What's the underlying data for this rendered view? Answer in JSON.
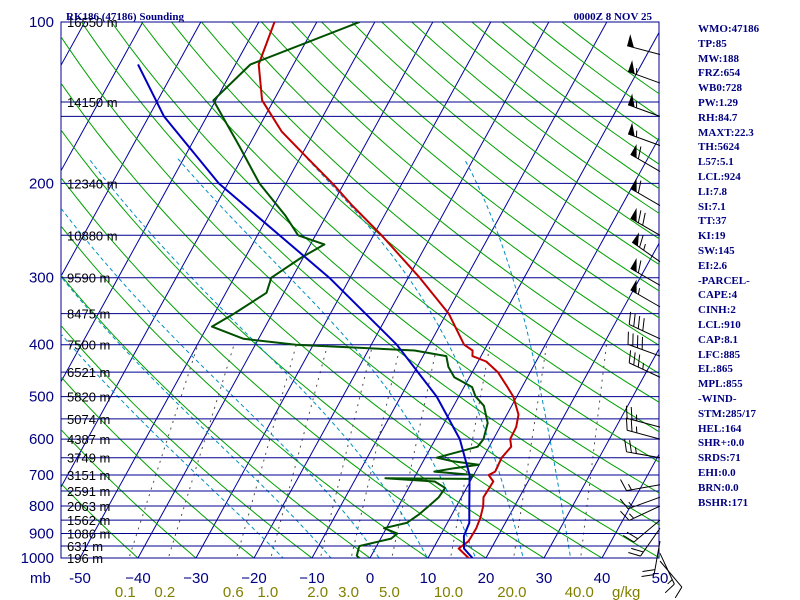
{
  "chart_data": {
    "type": "skew-t",
    "title": "RK186 (47186) Sounding",
    "valid_time": "0000Z 8 NOV 25",
    "pressure_axis": {
      "ticks": [
        100,
        200,
        300,
        400,
        500,
        600,
        700,
        800,
        900,
        1000
      ],
      "unit_label": "mb",
      "scale": "log",
      "range": [
        100,
        1000
      ]
    },
    "temperature_axis": {
      "ticks": [
        -50,
        -40,
        -30,
        -20,
        -10,
        0,
        10,
        20,
        30,
        40,
        50
      ],
      "tick_labels": [
        "-50",
        "−40",
        "−30",
        "−20",
        "−10",
        "0",
        "10",
        "20",
        "30",
        "40",
        "50"
      ],
      "unit": "C"
    },
    "mixing_ratio_axis": {
      "values": [
        0.1,
        0.2,
        0.6,
        1.0,
        2.0,
        3.0,
        5.0,
        10.0,
        20.0,
        40.0
      ],
      "labels": [
        "0.1",
        "0.2",
        "0.6",
        "1.0",
        "2.0",
        "3.0",
        "5.0",
        "10.0",
        "20.0",
        "40.0"
      ],
      "unit": "g/kg"
    },
    "heights": [
      {
        "p": 100,
        "label": "16550 m"
      },
      {
        "p": 141,
        "label": "14150 m"
      },
      {
        "p": 200,
        "label": "12340 m"
      },
      {
        "p": 250,
        "label": "10880 m"
      },
      {
        "p": 300,
        "label": "9590 m"
      },
      {
        "p": 350,
        "label": "8475 m"
      },
      {
        "p": 400,
        "label": "7500 m"
      },
      {
        "p": 450,
        "label": "6521 m"
      },
      {
        "p": 500,
        "label": "5820 m"
      },
      {
        "p": 550,
        "label": "5074 m"
      },
      {
        "p": 600,
        "label": "4387 m"
      },
      {
        "p": 650,
        "label": "3749 m"
      },
      {
        "p": 700,
        "label": "3151 m"
      },
      {
        "p": 750,
        "label": "2591 m"
      },
      {
        "p": 800,
        "label": "2063 m"
      },
      {
        "p": 850,
        "label": "1562 m"
      },
      {
        "p": 900,
        "label": "1086 m"
      },
      {
        "p": 950,
        "label": "631 m"
      },
      {
        "p": 1000,
        "label": "196 m"
      }
    ],
    "series": [
      {
        "kind": "temperature",
        "color": "#c00000",
        "points": [
          [
            1013,
            18.4
          ],
          [
            1000,
            17.0
          ],
          [
            960,
            14.4
          ],
          [
            930,
            15.4
          ],
          [
            880,
            15.5
          ],
          [
            840,
            15.2
          ],
          [
            800,
            14.6
          ],
          [
            770,
            13.8
          ],
          [
            720,
            14.0
          ],
          [
            700,
            12.6
          ],
          [
            690,
            13.4
          ],
          [
            650,
            13.2
          ],
          [
            620,
            13.8
          ],
          [
            600,
            12.9
          ],
          [
            570,
            12.8
          ],
          [
            540,
            12.0
          ],
          [
            500,
            9.4
          ],
          [
            480,
            7.5
          ],
          [
            450,
            4.4
          ],
          [
            430,
            1.4
          ],
          [
            420,
            -1.5
          ],
          [
            410,
            -2.0
          ],
          [
            400,
            -4.0
          ],
          [
            350,
            -9.6
          ],
          [
            300,
            -18.0
          ],
          [
            250,
            -28.6
          ],
          [
            220,
            -36.5
          ],
          [
            200,
            -42.0
          ],
          [
            180,
            -48.5
          ],
          [
            160,
            -55.7
          ],
          [
            140,
            -62.0
          ],
          [
            120,
            -66.0
          ],
          [
            100,
            -67.3
          ]
        ]
      },
      {
        "kind": "dewpoint",
        "color": "#005000",
        "points": [
          [
            1013,
            -1.0
          ],
          [
            990,
            -2.5
          ],
          [
            950,
            -3.0
          ],
          [
            920,
            1.8
          ],
          [
            900,
            2.4
          ],
          [
            880,
            -0.4
          ],
          [
            860,
            3.0
          ],
          [
            830,
            4.3
          ],
          [
            800,
            5.2
          ],
          [
            770,
            6.1
          ],
          [
            740,
            6.3
          ],
          [
            720,
            3.9
          ],
          [
            710,
            -4.9
          ],
          [
            712,
            9.6
          ],
          [
            700,
            10.0
          ],
          [
            690,
            2.9
          ],
          [
            680,
            6.0
          ],
          [
            670,
            9.9
          ],
          [
            660,
            5.1
          ],
          [
            650,
            2.0
          ],
          [
            620,
            8.0
          ],
          [
            600,
            8.3
          ],
          [
            560,
            7.5
          ],
          [
            520,
            5.2
          ],
          [
            500,
            2.9
          ],
          [
            480,
            1.4
          ],
          [
            460,
            -2.6
          ],
          [
            440,
            -4.6
          ],
          [
            420,
            -6.0
          ],
          [
            410,
            -12.0
          ],
          [
            400,
            -33.0
          ],
          [
            390,
            -42.6
          ],
          [
            370,
            -49.2
          ],
          [
            350,
            -46.6
          ],
          [
            320,
            -43.0
          ],
          [
            300,
            -43.6
          ],
          [
            275,
            -40.3
          ],
          [
            260,
            -37.6
          ],
          [
            250,
            -43.0
          ],
          [
            230,
            -47.0
          ],
          [
            200,
            -54.6
          ],
          [
            170,
            -61.7
          ],
          [
            140,
            -70.4
          ],
          [
            120,
            -67.4
          ],
          [
            100,
            -52.6
          ]
        ]
      },
      {
        "kind": "parcel",
        "color": "#0000c0",
        "points": [
          [
            1013,
            18.4
          ],
          [
            960,
            15.3
          ],
          [
            910,
            14.1
          ],
          [
            860,
            13.8
          ],
          [
            800,
            12.2
          ],
          [
            700,
            9.3
          ],
          [
            600,
            4.2
          ],
          [
            500,
            -3.8
          ],
          [
            400,
            -15.6
          ],
          [
            300,
            -33.6
          ],
          [
            250,
            -46.2
          ],
          [
            200,
            -61.6
          ],
          [
            150,
            -77.4
          ],
          [
            120,
            -86.8
          ]
        ]
      }
    ],
    "wind_barbs": [
      {
        "p": 1013,
        "dir": 140,
        "spd": 10
      },
      {
        "p": 980,
        "dir": 155,
        "spd": 15
      },
      {
        "p": 930,
        "dir": 190,
        "spd": 20
      },
      {
        "p": 880,
        "dir": 215,
        "spd": 20
      },
      {
        "p": 850,
        "dir": 230,
        "spd": 20
      },
      {
        "p": 800,
        "dir": 245,
        "spd": 15
      },
      {
        "p": 770,
        "dir": 250,
        "spd": 15
      },
      {
        "p": 730,
        "dir": 260,
        "spd": 15
      },
      {
        "p": 650,
        "dir": 280,
        "spd": 25
      },
      {
        "p": 600,
        "dir": 285,
        "spd": 25
      },
      {
        "p": 570,
        "dir": 285,
        "spd": 25
      },
      {
        "p": 460,
        "dir": 295,
        "spd": 35
      },
      {
        "p": 420,
        "dir": 290,
        "spd": 40
      },
      {
        "p": 390,
        "dir": 295,
        "spd": 40
      },
      {
        "p": 340,
        "dir": 300,
        "spd": 55
      },
      {
        "p": 310,
        "dir": 300,
        "spd": 60
      },
      {
        "p": 280,
        "dir": 305,
        "spd": 65
      },
      {
        "p": 250,
        "dir": 300,
        "spd": 70
      },
      {
        "p": 220,
        "dir": 300,
        "spd": 60
      },
      {
        "p": 190,
        "dir": 300,
        "spd": 60
      },
      {
        "p": 170,
        "dir": 290,
        "spd": 55
      },
      {
        "p": 150,
        "dir": 290,
        "spd": 55
      },
      {
        "p": 130,
        "dir": 290,
        "spd": 55
      },
      {
        "p": 115,
        "dir": 285,
        "spd": 50
      }
    ]
  },
  "indices": [
    "WMO:47186",
    "TP:85",
    "MW:188",
    "FRZ:654",
    "WB0:728",
    "PW:1.29",
    "RH:84.7",
    "MAXT:22.3",
    "TH:5624",
    "L57:5.1",
    "LCL:924",
    "LI:7.8",
    "SI:7.1",
    "TT:37",
    "KI:19",
    "SW:145",
    "EI:2.6",
    "-PARCEL-",
    "CAPE:4",
    "CINH:2",
    "LCL:910",
    "CAP:8.1",
    "LFC:885",
    "EL:865",
    "MPL:855",
    "-WIND-",
    "STM:285/17",
    "HEL:164",
    "SHR+:0.0",
    "SRDS:71",
    "EHI:0.0",
    "BRN:0.0",
    "BSHR:171"
  ],
  "colors": {
    "isobar": "#000090",
    "isotherm": "#0000a0",
    "dry_adiabat": "#00a000",
    "moist_adiabat": "#0090c0",
    "mixing_ratio": "#505050",
    "axis_text": "#000080",
    "mixing_label": "#808000",
    "background": "#ffffff",
    "chart_bg": "#ffffff"
  }
}
